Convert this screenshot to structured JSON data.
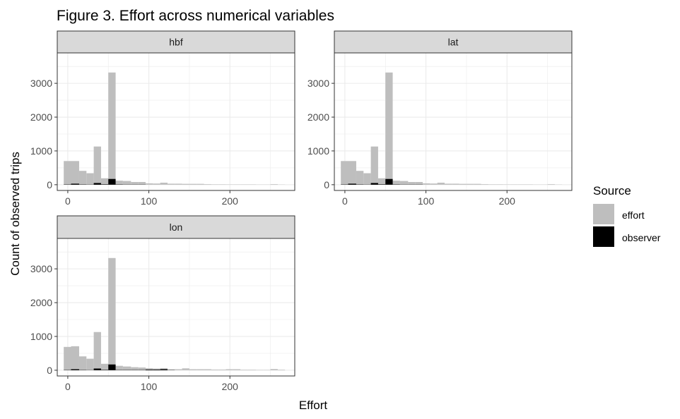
{
  "chart_data": {
    "type": "bar",
    "title": "Figure 3. Effort across numerical variables",
    "xlabel": "Effort",
    "ylabel": "Count of observed trips",
    "xlim": [
      -13,
      280
    ],
    "ylim": [
      -170,
      3900
    ],
    "x_ticks": [
      0,
      100,
      200
    ],
    "y_ticks": [
      0,
      1000,
      2000,
      3000
    ],
    "grid": true,
    "legend_position": "right",
    "legend": {
      "title": "Source",
      "entries": [
        {
          "label": "effort",
          "color": "#bebebe"
        },
        {
          "label": "observer",
          "color": "#000000"
        }
      ]
    },
    "colors": {
      "effort": "#bebebe",
      "observer": "#000000",
      "strip": "#d9d9d9",
      "grid": "#ebebeb",
      "axis": "#333333",
      "text": "#4d4d4d"
    },
    "panels": [
      {
        "strip": "hbf",
        "series": [
          {
            "name": "effort",
            "bins": [
              [
                -5,
                4,
                700
              ],
              [
                4,
                14,
                700
              ],
              [
                14,
                23,
                410
              ],
              [
                23,
                32,
                340
              ],
              [
                32,
                41,
                1130
              ],
              [
                41,
                50,
                190
              ],
              [
                50,
                59,
                3320
              ],
              [
                59,
                68,
                120
              ],
              [
                68,
                78,
                110
              ],
              [
                78,
                87,
                80
              ],
              [
                87,
                96,
                80
              ],
              [
                96,
                105,
                40
              ],
              [
                105,
                114,
                35
              ],
              [
                114,
                123,
                60
              ],
              [
                123,
                132,
                30
              ],
              [
                132,
                141,
                30
              ],
              [
                141,
                150,
                25
              ],
              [
                150,
                159,
                25
              ],
              [
                159,
                168,
                25
              ],
              [
                168,
                177,
                15
              ],
              [
                177,
                186,
                10
              ],
              [
                186,
                195,
                10
              ],
              [
                195,
                204,
                8
              ],
              [
                204,
                213,
                8
              ],
              [
                213,
                222,
                8
              ],
              [
                222,
                232,
                8
              ],
              [
                232,
                241,
                5
              ],
              [
                241,
                250,
                5
              ],
              [
                250,
                259,
                15
              ],
              [
                259,
                268,
                5
              ]
            ]
          },
          {
            "name": "observer",
            "bins": [
              [
                -5,
                4,
                8
              ],
              [
                4,
                14,
                30
              ],
              [
                14,
                23,
                8
              ],
              [
                23,
                32,
                5
              ],
              [
                32,
                41,
                50
              ],
              [
                41,
                50,
                12
              ],
              [
                50,
                59,
                170
              ],
              [
                59,
                68,
                8
              ],
              [
                68,
                78,
                5
              ],
              [
                78,
                87,
                5
              ],
              [
                87,
                96,
                5
              ]
            ]
          }
        ]
      },
      {
        "strip": "lat",
        "series": [
          {
            "name": "effort",
            "bins": [
              [
                -5,
                4,
                700
              ],
              [
                4,
                14,
                700
              ],
              [
                14,
                23,
                410
              ],
              [
                23,
                32,
                340
              ],
              [
                32,
                41,
                1130
              ],
              [
                41,
                50,
                190
              ],
              [
                50,
                59,
                3320
              ],
              [
                59,
                68,
                120
              ],
              [
                68,
                78,
                110
              ],
              [
                78,
                87,
                80
              ],
              [
                87,
                96,
                80
              ],
              [
                96,
                105,
                40
              ],
              [
                105,
                114,
                35
              ],
              [
                114,
                123,
                60
              ],
              [
                123,
                132,
                30
              ],
              [
                132,
                141,
                30
              ],
              [
                141,
                150,
                25
              ],
              [
                150,
                159,
                25
              ],
              [
                159,
                168,
                25
              ],
              [
                168,
                177,
                15
              ],
              [
                177,
                186,
                10
              ],
              [
                186,
                195,
                10
              ],
              [
                195,
                204,
                8
              ],
              [
                204,
                213,
                8
              ],
              [
                213,
                222,
                8
              ],
              [
                222,
                232,
                8
              ],
              [
                232,
                241,
                5
              ],
              [
                241,
                250,
                5
              ],
              [
                250,
                259,
                15
              ],
              [
                259,
                268,
                5
              ]
            ]
          },
          {
            "name": "observer",
            "bins": [
              [
                -5,
                4,
                8
              ],
              [
                4,
                14,
                30
              ],
              [
                14,
                23,
                8
              ],
              [
                23,
                32,
                5
              ],
              [
                32,
                41,
                50
              ],
              [
                41,
                50,
                12
              ],
              [
                50,
                59,
                170
              ],
              [
                59,
                68,
                8
              ],
              [
                68,
                78,
                5
              ],
              [
                78,
                87,
                5
              ],
              [
                87,
                96,
                5
              ]
            ]
          }
        ]
      },
      {
        "strip": "lon",
        "series": [
          {
            "name": "effort",
            "bins": [
              [
                -5,
                4,
                690
              ],
              [
                4,
                14,
                710
              ],
              [
                14,
                23,
                410
              ],
              [
                23,
                32,
                340
              ],
              [
                32,
                41,
                1130
              ],
              [
                41,
                50,
                190
              ],
              [
                50,
                59,
                3320
              ],
              [
                59,
                68,
                130
              ],
              [
                68,
                78,
                110
              ],
              [
                78,
                87,
                90
              ],
              [
                87,
                96,
                80
              ],
              [
                96,
                105,
                60
              ],
              [
                105,
                114,
                50
              ],
              [
                114,
                123,
                60
              ],
              [
                123,
                132,
                30
              ],
              [
                132,
                141,
                30
              ],
              [
                141,
                150,
                55
              ],
              [
                150,
                159,
                30
              ],
              [
                159,
                168,
                30
              ],
              [
                168,
                177,
                30
              ],
              [
                177,
                186,
                20
              ],
              [
                186,
                195,
                20
              ],
              [
                195,
                204,
                30
              ],
              [
                204,
                213,
                30
              ],
              [
                213,
                222,
                15
              ],
              [
                222,
                232,
                15
              ],
              [
                232,
                241,
                10
              ],
              [
                241,
                250,
                10
              ],
              [
                250,
                259,
                35
              ],
              [
                259,
                268,
                15
              ]
            ]
          },
          {
            "name": "observer",
            "bins": [
              [
                -5,
                4,
                8
              ],
              [
                4,
                14,
                30
              ],
              [
                14,
                23,
                8
              ],
              [
                23,
                32,
                5
              ],
              [
                32,
                41,
                50
              ],
              [
                41,
                50,
                12
              ],
              [
                50,
                59,
                170
              ],
              [
                59,
                68,
                8
              ],
              [
                68,
                78,
                8
              ],
              [
                78,
                87,
                8
              ],
              [
                87,
                96,
                8
              ],
              [
                96,
                105,
                20
              ],
              [
                105,
                114,
                20
              ],
              [
                114,
                123,
                30
              ],
              [
                123,
                132,
                5
              ]
            ]
          }
        ]
      }
    ]
  }
}
